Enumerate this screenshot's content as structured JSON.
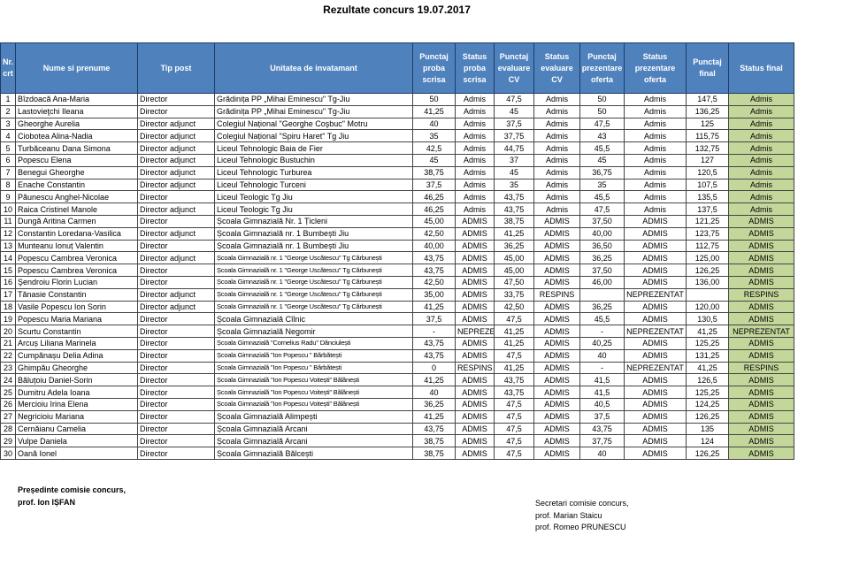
{
  "title": "Rezultate concurs 19.07.2017",
  "table": {
    "header": [
      "Nr. crt",
      "Nume si prenume",
      "Tip post",
      "Unitatea de invatamant",
      "Punctaj proba scrisa",
      "Status proba scrisa",
      "Punctaj evaluare CV",
      "Status evaluare CV",
      "Punctaj prezentare oferta",
      "Status prezentare oferta",
      "Punctaj final",
      "Status final"
    ],
    "rows": [
      [
        "1",
        "Bîzdoacă Ana-Maria",
        "Director",
        "Grădinița PP „Mihai Eminescu\" Tg-Jiu",
        "50",
        "Admis",
        "47,5",
        "Admis",
        "50",
        "Admis",
        "147,5",
        "Admis"
      ],
      [
        "2",
        "Lastovieţchi Ileana",
        "Director",
        "Grădinița PP „Mihai Eminescu\" Tg-Jiu",
        "41,25",
        "Admis",
        "45",
        "Admis",
        "50",
        "Admis",
        "136,25",
        "Admis"
      ],
      [
        "3",
        "Gheorghe Aurelia",
        "Director adjunct",
        "Colegiul Național \"Georghe Coşbuc\" Motru",
        "40",
        "Admis",
        "37,5",
        "Admis",
        "47,5",
        "Admis",
        "125",
        "Admis"
      ],
      [
        "4",
        "Ciobotea Alina-Nadia",
        "Director adjunct",
        "Colegiul Național \"Spiru Haret\" Tg Jiu",
        "35",
        "Admis",
        "37,75",
        "Admis",
        "43",
        "Admis",
        "115,75",
        "Admis"
      ],
      [
        "5",
        "Turbăceanu Dana Simona",
        "Director adjunct",
        "Liceul Tehnologic Baia de Fier",
        "42,5",
        "Admis",
        "44,75",
        "Admis",
        "45,5",
        "Admis",
        "132,75",
        "Admis"
      ],
      [
        "6",
        "Popescu Elena",
        "Director adjunct",
        "Liceul Tehnologic Bustuchin",
        "45",
        "Admis",
        "37",
        "Admis",
        "45",
        "Admis",
        "127",
        "Admis"
      ],
      [
        "7",
        "Benegui Gheorghe",
        "Director adjunct",
        "Liceul Tehnologic Turburea",
        "38,75",
        "Admis",
        "45",
        "Admis",
        "36,75",
        "Admis",
        "120,5",
        "Admis"
      ],
      [
        "8",
        "Enache Constantin",
        "Director adjunct",
        "Liceul Tehnologic Turceni",
        "37,5",
        "Admis",
        "35",
        "Admis",
        "35",
        "Admis",
        "107,5",
        "Admis"
      ],
      [
        "9",
        "Păunescu Anghel-Nicolae",
        "Director",
        "Liceul Teologic Tg Jiu",
        "46,25",
        "Admis",
        "43,75",
        "Admis",
        "45,5",
        "Admis",
        "135,5",
        "Admis"
      ],
      [
        "10",
        "Raica Cristinel Manole",
        "Director adjunct",
        "Liceul Teologic Tg Jiu",
        "46,25",
        "Admis",
        "43,75",
        "Admis",
        "47,5",
        "Admis",
        "137,5",
        "Admis"
      ],
      [
        "11",
        "Dungă Aritina Carmen",
        "Director",
        "Școala Gimnazială Nr. 1 Țicleni",
        "45,00",
        "ADMIS",
        "38,75",
        "ADMIS",
        "37,50",
        "ADMIS",
        "121,25",
        "ADMIS"
      ],
      [
        "12",
        "Constantin Loredana-Vasilica",
        "Director adjunct",
        "Școala Gimnazială nr. 1 Bumbești Jiu",
        "42,50",
        "ADMIS",
        "41,25",
        "ADMIS",
        "40,00",
        "ADMIS",
        "123,75",
        "ADMIS"
      ],
      [
        "13",
        "Munteanu Ionuț Valentin",
        "Director",
        "Școala Gimnazială nr. 1 Bumbești Jiu",
        "40,00",
        "ADMIS",
        "36,25",
        "ADMIS",
        "36,50",
        "ADMIS",
        "112,75",
        "ADMIS"
      ],
      [
        "14",
        "Popescu Cambrea Veronica",
        "Director adjunct",
        "Școala Gimnazială nr. 1 \"George Uscătescu\" Tg Cărbunești",
        "43,75",
        "ADMIS",
        "45,00",
        "ADMIS",
        "36,25",
        "ADMIS",
        "125,00",
        "ADMIS"
      ],
      [
        "15",
        "Popescu Cambrea Veronica",
        "Director",
        "Școala Gimnazială nr. 1 \"George Uscătescu\" Tg Cărbunești",
        "43,75",
        "ADMIS",
        "45,00",
        "ADMIS",
        "37,50",
        "ADMIS",
        "126,25",
        "ADMIS"
      ],
      [
        "16",
        "Şendroiu Florin Lucian",
        "Director",
        "Școala Gimnazială nr. 1 \"George Uscătescu\" Tg Cărbunești",
        "42,50",
        "ADMIS",
        "47,50",
        "ADMIS",
        "46,00",
        "ADMIS",
        "136,00",
        "ADMIS"
      ],
      [
        "17",
        "Tănasie Constantin",
        "Director adjunct",
        "Școala Gimnazială nr. 1 \"George Uscătescu\" Tg Cărbunești",
        "35,00",
        "ADMIS",
        "33,75",
        "RESPINS",
        null,
        "NEPREZENTAT",
        null,
        "RESPINS"
      ],
      [
        "18",
        "Vasile Popescu Ion Sorin",
        "Director adjunct",
        "Școala Gimnazială nr. 1 \"George Uscătescu\" Tg Cărbunești",
        "41,25",
        "ADMIS",
        "42,50",
        "ADMIS",
        "36,25",
        "ADMIS",
        "120,00",
        "ADMIS"
      ],
      [
        "19",
        "Popescu Maria Mariana",
        "Director",
        "Școala Gimnazială Cîlnic",
        "37,5",
        "ADMIS",
        "47,5",
        "ADMIS",
        "45,5",
        "ADMIS",
        "130,5",
        "ADMIS"
      ],
      [
        "20",
        "Scurtu Constantin",
        "Director",
        "Școala Gimnazială Negomir",
        "-",
        "NEPREZENTAT",
        "41,25",
        "ADMIS",
        "-",
        "NEPREZENTAT",
        "41,25",
        "NEPREZENTAT"
      ],
      [
        "21",
        "Arcuș Liliana Marinela",
        "Director",
        "Școala Gimnazială \"Cornelius Radu\" Dănciulești",
        "43,75",
        "ADMIS",
        "41,25",
        "ADMIS",
        "40,25",
        "ADMIS",
        "125,25",
        "ADMIS"
      ],
      [
        "22",
        "Cumpănașu Delia Adina",
        "Director",
        "Școala Gimnazială \"Ion Popescu \" Bărbătești",
        "43,75",
        "ADMIS",
        "47,5",
        "ADMIS",
        "40",
        "ADMIS",
        "131,25",
        "ADMIS"
      ],
      [
        "23",
        "Ghimpău Gheorghe",
        "Director",
        "Școala Gimnazială \"Ion Popescu \" Bărbătești",
        "0",
        "RESPINS",
        "41,25",
        "ADMIS",
        "-",
        "NEPREZENTAT",
        "41,25",
        "RESPINS"
      ],
      [
        "24",
        "Băluțoiu Daniel-Sorin",
        "Director",
        "Școala Gimnazială \"Ion Popescu Voitești\" Bălănești",
        "41,25",
        "ADMIS",
        "43,75",
        "ADMIS",
        "41,5",
        "ADMIS",
        "126,5",
        "ADMIS"
      ],
      [
        "25",
        "Dumitru Adela Ioana",
        "Director",
        "Școala Gimnazială \"Ion Popescu Voitești\" Bălănești",
        "40",
        "ADMIS",
        "43,75",
        "ADMIS",
        "41,5",
        "ADMIS",
        "125,25",
        "ADMIS"
      ],
      [
        "26",
        "Mercioiu Irina Elena",
        "Director",
        "Școala Gimnazială \"Ion Popescu Voitești\" Bălănești",
        "36,25",
        "ADMIS",
        "47,5",
        "ADMIS",
        "40,5",
        "ADMIS",
        "124,25",
        "ADMIS"
      ],
      [
        "27",
        "Negricioiu Mariana",
        "Director",
        "Școala Gimnazială Alimpești",
        "41,25",
        "ADMIS",
        "47,5",
        "ADMIS",
        "37,5",
        "ADMIS",
        "126,25",
        "ADMIS"
      ],
      [
        "28",
        "Cernăianu Camelia",
        "Director",
        "Școala Gimnazială Arcani",
        "43,75",
        "ADMIS",
        "47,5",
        "ADMIS",
        "43,75",
        "ADMIS",
        "135",
        "ADMIS"
      ],
      [
        "29",
        "Vulpe Daniela",
        "Director",
        "Școala Gimnazială Arcani",
        "38,75",
        "ADMIS",
        "47,5",
        "ADMIS",
        "37,75",
        "ADMIS",
        "124",
        "ADMIS"
      ],
      [
        "30",
        "Oană Ionel",
        "Director",
        "Școala Gimnazială Bălcești",
        "38,75",
        "ADMIS",
        "47,5",
        "ADMIS",
        "40",
        "ADMIS",
        "126,25",
        "ADMIS"
      ]
    ]
  },
  "footer": {
    "left": [
      "Președinte comisie concurs,",
      "prof. Ion IȘFAN"
    ],
    "right": [
      "Secretari comisie concurs,",
      "prof. Marian Staicu",
      "prof. Romeo PRUNESCU"
    ]
  }
}
